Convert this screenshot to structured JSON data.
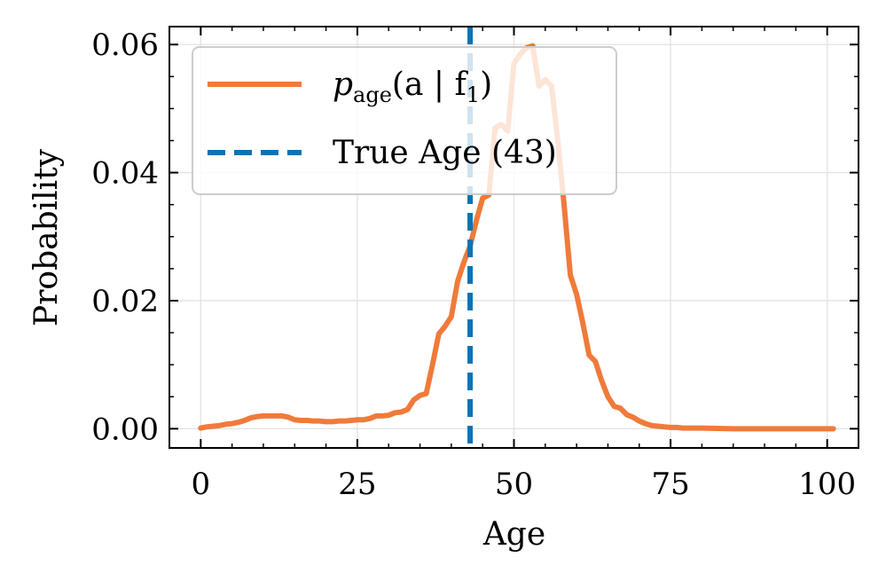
{
  "chart_data": {
    "type": "line",
    "xlabel": "Age",
    "ylabel": "Probability",
    "xlim": [
      -5,
      105
    ],
    "ylim": [
      -0.003,
      0.0628
    ],
    "x_ticks": [
      0,
      25,
      50,
      75,
      100
    ],
    "x_tick_labels": [
      "0",
      "25",
      "50",
      "75",
      "100"
    ],
    "y_ticks": [
      0.0,
      0.02,
      0.04,
      0.06
    ],
    "y_tick_labels": [
      "0.00",
      "0.02",
      "0.04",
      "0.06"
    ],
    "grid": true,
    "legend_position": "top-left",
    "series": [
      {
        "name_base": "p",
        "name_sub": "age",
        "name_rest": "(a | f",
        "name_sub2": "1",
        "name_end": ")",
        "color": "#f07a3a",
        "style": "solid",
        "x": [
          0,
          1,
          2,
          3,
          4,
          5,
          6,
          7,
          8,
          9,
          10,
          11,
          12,
          13,
          14,
          15,
          16,
          17,
          18,
          19,
          20,
          21,
          22,
          23,
          24,
          25,
          26,
          27,
          28,
          29,
          30,
          31,
          32,
          33,
          34,
          35,
          36,
          37,
          38,
          39,
          40,
          41,
          42,
          43,
          44,
          45,
          46,
          47,
          48,
          49,
          50,
          51,
          52,
          53,
          54,
          55,
          56,
          57,
          58,
          59,
          60,
          61,
          62,
          63,
          64,
          65,
          66,
          67,
          68,
          69,
          70,
          71,
          72,
          73,
          74,
          75,
          76,
          77,
          78,
          79,
          80,
          85,
          90,
          95,
          101
        ],
        "y": [
          0.0001,
          0.0003,
          0.0004,
          0.0005,
          0.0007,
          0.0008,
          0.001,
          0.0013,
          0.0017,
          0.0019,
          0.002,
          0.002,
          0.002,
          0.002,
          0.0018,
          0.0014,
          0.0013,
          0.0013,
          0.0012,
          0.0012,
          0.0011,
          0.0011,
          0.0012,
          0.0012,
          0.0013,
          0.0014,
          0.0014,
          0.0016,
          0.002,
          0.002,
          0.0021,
          0.0025,
          0.0026,
          0.003,
          0.0045,
          0.0052,
          0.0055,
          0.01,
          0.0148,
          0.016,
          0.0175,
          0.023,
          0.026,
          0.0285,
          0.0325,
          0.036,
          0.0365,
          0.047,
          0.0475,
          0.0465,
          0.057,
          0.0585,
          0.0595,
          0.0598,
          0.0535,
          0.0545,
          0.0535,
          0.045,
          0.035,
          0.024,
          0.021,
          0.0165,
          0.0115,
          0.0105,
          0.0075,
          0.005,
          0.0035,
          0.0032,
          0.0022,
          0.0018,
          0.0012,
          0.0008,
          0.0005,
          0.0004,
          0.0003,
          0.0002,
          0.0002,
          0.0001,
          0.0001,
          0.0001,
          0.0001,
          0.0,
          0.0,
          0.0,
          0.0
        ]
      },
      {
        "name": "True Age (43)",
        "color": "#0a73b5",
        "style": "dashed",
        "vertical_line_x": 43
      }
    ]
  }
}
